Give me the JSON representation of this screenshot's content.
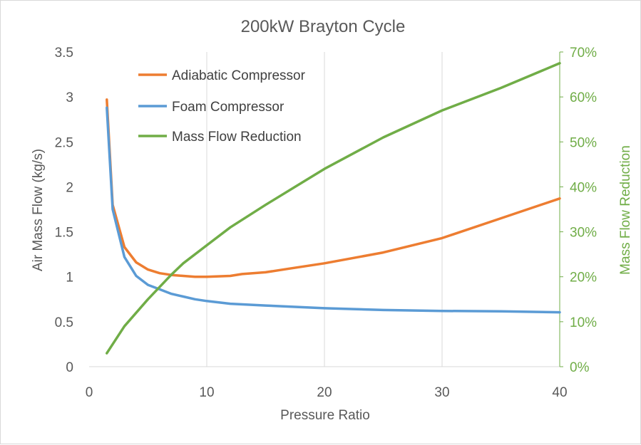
{
  "chart_data": {
    "type": "line",
    "title": "200kW Brayton Cycle",
    "xlabel": "Pressure Ratio",
    "ylabel": "Air Mass Flow (kg/s)",
    "y2label": "Mass Flow Reduction",
    "xlim": [
      0,
      40
    ],
    "ylim": [
      0,
      3.5
    ],
    "y2lim": [
      0,
      70
    ],
    "x_ticks": [
      0,
      10,
      20,
      30,
      40
    ],
    "x_tick_labels": [
      "0",
      "10",
      "20",
      "30",
      "40"
    ],
    "y_ticks": [
      0,
      0.5,
      1,
      1.5,
      2,
      2.5,
      3,
      3.5
    ],
    "y_tick_labels": [
      "0",
      "0.5",
      "1",
      "1.5",
      "2",
      "2.5",
      "3",
      "3.5"
    ],
    "y2_ticks": [
      0,
      10,
      20,
      30,
      40,
      50,
      60,
      70
    ],
    "y2_tick_labels": [
      "0%",
      "10%",
      "20%",
      "30%",
      "40%",
      "50%",
      "60%",
      "70%"
    ],
    "grid": "vertical",
    "legend_position": "top-left",
    "series": [
      {
        "name": "Adiabatic Compressor",
        "axis": "left",
        "color": "#ed7d31",
        "x": [
          1.5,
          2,
          3,
          4,
          5,
          6,
          7,
          8,
          9,
          10,
          12,
          13,
          15,
          17,
          20,
          25,
          30,
          35,
          40
        ],
        "y": [
          2.97,
          1.8,
          1.33,
          1.16,
          1.08,
          1.04,
          1.02,
          1.01,
          1.0,
          1.0,
          1.01,
          1.03,
          1.05,
          1.09,
          1.15,
          1.27,
          1.43,
          1.65,
          1.87
        ]
      },
      {
        "name": "Foam Compressor",
        "axis": "left",
        "color": "#5b9bd5",
        "x": [
          1.5,
          2,
          3,
          4,
          5,
          6,
          7,
          8,
          9,
          10,
          12,
          15,
          20,
          25,
          30,
          35,
          40
        ],
        "y": [
          2.88,
          1.75,
          1.22,
          1.01,
          0.91,
          0.86,
          0.81,
          0.78,
          0.75,
          0.73,
          0.7,
          0.68,
          0.65,
          0.63,
          0.62,
          0.615,
          0.605
        ]
      },
      {
        "name": "Mass Flow Reduction",
        "axis": "right",
        "color": "#70ad47",
        "x": [
          1.5,
          3,
          5,
          7,
          8,
          10,
          12,
          15,
          20,
          25,
          30,
          35,
          40
        ],
        "y": [
          3,
          9,
          15,
          20.5,
          23,
          27,
          31,
          36,
          44,
          51,
          57,
          62,
          67.5
        ]
      }
    ]
  }
}
